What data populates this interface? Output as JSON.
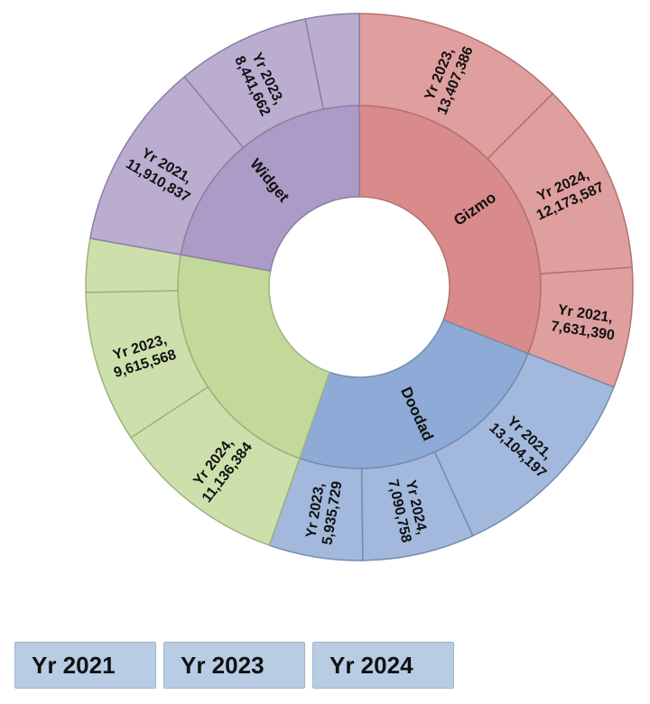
{
  "chart_data": {
    "type": "sunburst",
    "categories": [
      {
        "name": "Gizmo",
        "color": "#d98a8a",
        "children": [
          {
            "name": "Yr 2023",
            "value": 13407386,
            "label": "Yr 2023,|13,407,386"
          },
          {
            "name": "Yr 2024",
            "value": 12173587,
            "label": "Yr 2024,|12,173,587"
          },
          {
            "name": "Yr 2021",
            "value": 7631390,
            "label": "Yr 2021,|7,631,390"
          }
        ]
      },
      {
        "name": "Doodad",
        "color": "#8eaad6",
        "children": [
          {
            "name": "Yr 2021",
            "value": 13104197,
            "label": "Yr 2021,|13,104,197"
          },
          {
            "name": "Yr 2024",
            "value": 7090758,
            "label": "Yr 2024,|7,090,758"
          },
          {
            "name": "Yr 2023",
            "value": 5935729,
            "label": "Yr 2023,|5,935,729"
          }
        ]
      },
      {
        "name": "",
        "color": "#c2d99a",
        "children": [
          {
            "name": "Yr 2024",
            "value": 11136384,
            "label": "Yr 2024,|11,136,384"
          },
          {
            "name": "Yr 2023",
            "value": 9615568,
            "label": "Yr 2023,|9,615,568"
          },
          {
            "name": "",
            "value": 3400000,
            "label": ""
          }
        ]
      },
      {
        "name": "Widget",
        "color": "#ab9bc6",
        "children": [
          {
            "name": "Yr 2021",
            "value": 11910837,
            "label": "Yr 2021,|11,910,837"
          },
          {
            "name": "Yr 2023",
            "value": 8441662,
            "label": "Yr 2023,|8,441,662"
          },
          {
            "name": "",
            "value": 3400000,
            "label": ""
          }
        ]
      }
    ]
  },
  "slicer": {
    "buttons": [
      "Yr 2021",
      "Yr 2023",
      "Yr 2024"
    ]
  }
}
